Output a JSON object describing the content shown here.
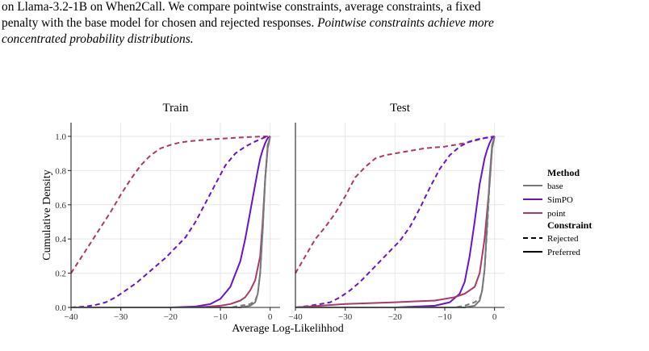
{
  "caption": {
    "line1": "on Llama-3.2-1B on When2Call. We compare pointwise constraints, average constraints, a fixed",
    "line2": "penalty with the base model for chosen and rejected responses.",
    "line2_emph": "Pointwise constraints achieve more",
    "line3_emph": "concentrated probability distributions."
  },
  "colors": {
    "base": "#77787c",
    "SimPO": "#6a14c4",
    "point": "#a83a68",
    "grid": "#e6e6e6",
    "axis": "#222222"
  },
  "chart_data": {
    "type": "line",
    "xlabel": "Average Log-Likelihhod",
    "ylabel": "Cumulative Density",
    "xlim": [
      -40,
      2
    ],
    "ylim": [
      0,
      1.08
    ],
    "xticks": [
      -40,
      -30,
      -20,
      -10,
      0
    ],
    "yticks": [
      0.0,
      0.2,
      0.4,
      0.6,
      0.8,
      1.0
    ],
    "grid": true,
    "legend": {
      "placement": "right",
      "method_title": "Method",
      "methods": [
        "base",
        "SimPO",
        "point"
      ],
      "constraint_title": "Constraint",
      "constraints": [
        "Rejected",
        "Preferred"
      ]
    },
    "panels": [
      {
        "title": "Train",
        "series": [
          {
            "method": "point",
            "constraint": "Rejected",
            "x": [
              -40,
              -38,
              -36,
              -34,
              -32,
              -30,
              -28,
              -26,
              -24,
              -22,
              -20,
              -18,
              -16,
              -14,
              -12,
              -10,
              -8,
              -6,
              -4,
              -2,
              0
            ],
            "y": [
              0.2,
              0.29,
              0.38,
              0.47,
              0.56,
              0.66,
              0.75,
              0.83,
              0.89,
              0.93,
              0.95,
              0.965,
              0.972,
              0.977,
              0.982,
              0.986,
              0.99,
              0.993,
              0.996,
              0.999,
              1.0
            ]
          },
          {
            "method": "SimPO",
            "constraint": "Rejected",
            "x": [
              -40,
              -37,
              -35,
              -33,
              -31,
              -29,
              -27,
              -25,
              -23,
              -21,
              -19,
              -17,
              -15,
              -13,
              -11,
              -9,
              -7,
              -5,
              -3,
              -1,
              0
            ],
            "y": [
              0.0,
              0.005,
              0.015,
              0.03,
              0.06,
              0.1,
              0.14,
              0.19,
              0.24,
              0.29,
              0.35,
              0.41,
              0.5,
              0.61,
              0.72,
              0.83,
              0.9,
              0.94,
              0.97,
              0.995,
              1.0
            ]
          },
          {
            "method": "SimPO",
            "constraint": "Preferred",
            "x": [
              -40,
              -20,
              -15,
              -12,
              -10,
              -8,
              -6,
              -5,
              -4,
              -3,
              -2.5,
              -2,
              -1.5,
              -1,
              -0.5,
              0
            ],
            "y": [
              0.0,
              0.0,
              0.005,
              0.02,
              0.05,
              0.12,
              0.27,
              0.4,
              0.56,
              0.72,
              0.8,
              0.87,
              0.92,
              0.96,
              0.99,
              1.0
            ]
          },
          {
            "method": "point",
            "constraint": "Preferred",
            "x": [
              -40,
              -15,
              -10,
              -8,
              -6,
              -5,
              -4,
              -3,
              -2,
              -1.5,
              -1,
              -0.5,
              0
            ],
            "y": [
              0.0,
              0.0,
              0.01,
              0.02,
              0.04,
              0.06,
              0.1,
              0.16,
              0.3,
              0.5,
              0.75,
              0.93,
              1.0
            ]
          },
          {
            "method": "base",
            "constraint": "Rejected",
            "x": [
              -40,
              -8,
              -6,
              -4,
              -3,
              -2.5,
              -2,
              -1.5,
              -1,
              -0.5,
              0
            ],
            "y": [
              0.0,
              0.0,
              0.01,
              0.02,
              0.04,
              0.08,
              0.2,
              0.45,
              0.75,
              0.95,
              1.0
            ]
          },
          {
            "method": "base",
            "constraint": "Preferred",
            "x": [
              -40,
              -6,
              -4,
              -3,
              -2.5,
              -2,
              -1.5,
              -1,
              -0.5,
              0
            ],
            "y": [
              0.0,
              0.0,
              0.01,
              0.03,
              0.08,
              0.2,
              0.45,
              0.75,
              0.94,
              1.0
            ]
          }
        ]
      },
      {
        "title": "Test",
        "series": [
          {
            "method": "point",
            "constraint": "Rejected",
            "x": [
              -40,
              -38,
              -36,
              -34,
              -32,
              -30,
              -28,
              -26,
              -24,
              -22,
              -20,
              -18,
              -16,
              -14,
              -12,
              -10,
              -8,
              -6,
              -4,
              -2,
              0
            ],
            "y": [
              0.2,
              0.3,
              0.4,
              0.47,
              0.55,
              0.65,
              0.76,
              0.82,
              0.87,
              0.89,
              0.9,
              0.91,
              0.92,
              0.93,
              0.935,
              0.94,
              0.95,
              0.96,
              0.975,
              0.99,
              1.0
            ]
          },
          {
            "method": "SimPO",
            "constraint": "Rejected",
            "x": [
              -40,
              -37,
              -35,
              -33,
              -31,
              -29,
              -27,
              -25,
              -23,
              -21,
              -19,
              -17,
              -15,
              -13,
              -11,
              -9,
              -7,
              -5,
              -3,
              -1,
              0
            ],
            "y": [
              0.0,
              0.01,
              0.02,
              0.03,
              0.06,
              0.1,
              0.15,
              0.21,
              0.27,
              0.33,
              0.39,
              0.47,
              0.58,
              0.7,
              0.81,
              0.89,
              0.94,
              0.97,
              0.985,
              0.995,
              1.0
            ]
          },
          {
            "method": "SimPO",
            "constraint": "Preferred",
            "x": [
              -40,
              -20,
              -12,
              -9,
              -7,
              -6,
              -5,
              -4,
              -3,
              -2,
              -1.5,
              -1,
              -0.5,
              0
            ],
            "y": [
              0.0,
              0.0,
              0.01,
              0.03,
              0.08,
              0.15,
              0.3,
              0.5,
              0.72,
              0.87,
              0.92,
              0.96,
              0.99,
              1.0
            ]
          },
          {
            "method": "point",
            "constraint": "Preferred",
            "x": [
              -40,
              -30,
              -20,
              -12,
              -8,
              -6,
              -4,
              -3,
              -2,
              -1,
              -0.5,
              0
            ],
            "y": [
              0.0,
              0.02,
              0.03,
              0.04,
              0.06,
              0.08,
              0.12,
              0.2,
              0.4,
              0.72,
              0.93,
              1.0
            ]
          },
          {
            "method": "base",
            "constraint": "Rejected",
            "x": [
              -40,
              -8,
              -6,
              -4,
              -3,
              -2.5,
              -2,
              -1.5,
              -1,
              -0.5,
              0
            ],
            "y": [
              0.0,
              0.0,
              0.01,
              0.03,
              0.05,
              0.1,
              0.22,
              0.45,
              0.72,
              0.93,
              1.0
            ]
          },
          {
            "method": "base",
            "constraint": "Preferred",
            "x": [
              -40,
              -6,
              -4,
              -3,
              -2.5,
              -2,
              -1.5,
              -1,
              -0.5,
              0
            ],
            "y": [
              0.0,
              0.0,
              0.01,
              0.04,
              0.1,
              0.22,
              0.48,
              0.76,
              0.95,
              1.0
            ]
          }
        ]
      }
    ]
  }
}
